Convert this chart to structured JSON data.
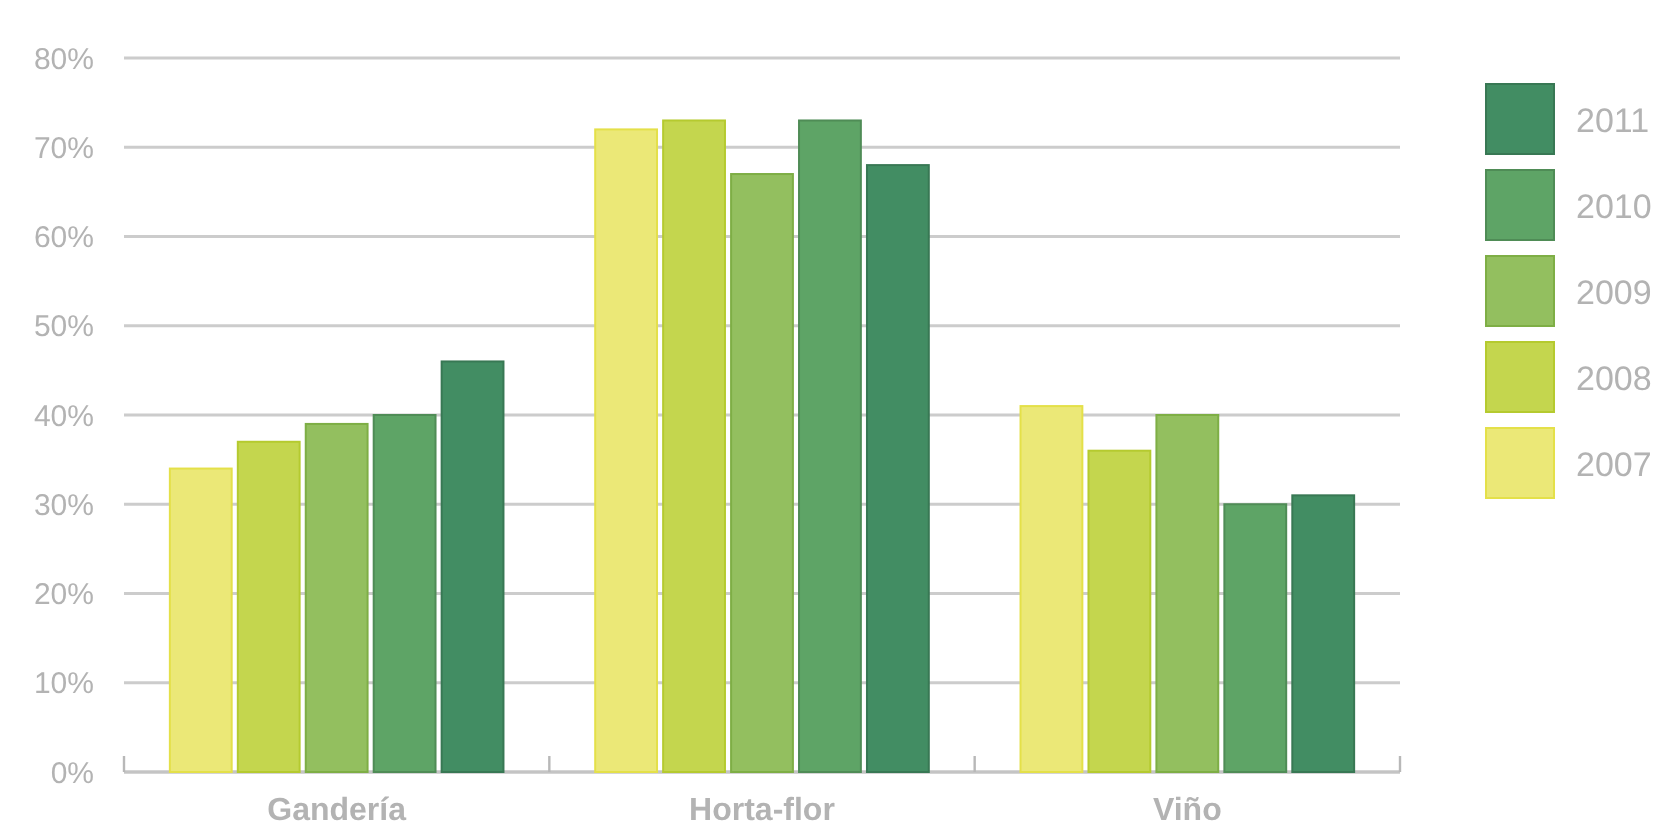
{
  "chart_data": {
    "type": "bar",
    "categories": [
      "Gandería",
      "Horta-flor",
      "Viño"
    ],
    "series": [
      {
        "name": "2007",
        "color": "#ebe877",
        "values": [
          34,
          72,
          41
        ]
      },
      {
        "name": "2008",
        "color": "#c4d64e",
        "values": [
          37,
          73,
          36
        ]
      },
      {
        "name": "2009",
        "color": "#93bf5f",
        "values": [
          39,
          67,
          40
        ]
      },
      {
        "name": "2010",
        "color": "#5ea466",
        "values": [
          40,
          73,
          30
        ]
      },
      {
        "name": "2011",
        "color": "#428d63",
        "values": [
          46,
          68,
          31
        ]
      }
    ],
    "ylim": [
      0,
      80
    ],
    "yticks": [
      {
        "value": 0,
        "label": "0%"
      },
      {
        "value": 10,
        "label": "10%"
      },
      {
        "value": 20,
        "label": "20%"
      },
      {
        "value": 30,
        "label": "30%"
      },
      {
        "value": 40,
        "label": "40%"
      },
      {
        "value": 50,
        "label": "50%"
      },
      {
        "value": 60,
        "label": "60%"
      },
      {
        "value": 70,
        "label": "70%"
      },
      {
        "value": 80,
        "label": "80%"
      }
    ],
    "grid": "y",
    "legend": "right"
  }
}
